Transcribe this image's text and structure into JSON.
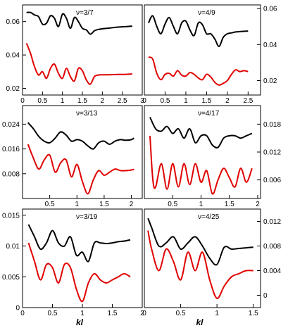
{
  "chart_data": [
    {
      "type": "line",
      "label": "ν=3/7",
      "xlim": [
        0,
        3
      ],
      "ylim": [
        0.016,
        0.07
      ],
      "xticks": [
        0,
        0.5,
        1,
        1.5,
        2,
        2.5,
        3
      ],
      "xtick_labels": [
        "0",
        "0.5",
        "1",
        "1.5",
        "2",
        "2.5",
        "3"
      ],
      "yticks": [
        0.02,
        0.04,
        0.06
      ],
      "ytick_labels": [
        "0.02",
        "0.04",
        "0.06"
      ],
      "yaxis_side": "left",
      "xlabel": "",
      "series": [
        {
          "color": "#000000",
          "x": [
            0.1,
            0.2,
            0.3,
            0.4,
            0.5,
            0.6,
            0.7,
            0.8,
            0.9,
            1.0,
            1.1,
            1.2,
            1.3,
            1.4,
            1.5,
            1.6,
            1.7,
            1.8,
            1.9,
            2.0,
            2.2,
            2.4,
            2.6,
            2.75
          ],
          "y": [
            0.0655,
            0.0655,
            0.064,
            0.063,
            0.0585,
            0.059,
            0.0635,
            0.062,
            0.057,
            0.0645,
            0.062,
            0.056,
            0.0625,
            0.06,
            0.056,
            0.055,
            0.0525,
            0.0545,
            0.0553,
            0.0557,
            0.0562,
            0.0567,
            0.057,
            0.0573
          ]
        },
        {
          "color": "#e00000",
          "x": [
            0.1,
            0.2,
            0.3,
            0.4,
            0.5,
            0.6,
            0.7,
            0.8,
            0.9,
            1.0,
            1.1,
            1.2,
            1.3,
            1.4,
            1.5,
            1.6,
            1.7,
            1.8,
            1.9,
            2.0,
            2.2,
            2.4,
            2.6,
            2.75
          ],
          "y": [
            0.047,
            0.041,
            0.033,
            0.028,
            0.03,
            0.026,
            0.032,
            0.0345,
            0.029,
            0.026,
            0.032,
            0.027,
            0.0245,
            0.032,
            0.0305,
            0.025,
            0.0225,
            0.027,
            0.028,
            0.0281,
            0.0282,
            0.0283,
            0.0284,
            0.0286
          ]
        }
      ]
    },
    {
      "type": "line",
      "label": "ν=4/9",
      "xlim": [
        0,
        2.8
      ],
      "ylim": [
        0.012,
        0.062
      ],
      "xticks": [
        0,
        0.5,
        1,
        1.5,
        2,
        2.5
      ],
      "xtick_labels": [
        "0",
        "0.5",
        "1",
        "1.5",
        "2",
        "2.5"
      ],
      "yticks": [
        0.02,
        0.04,
        0.06
      ],
      "ytick_labels": [
        "0.02",
        "0.04",
        "0.06"
      ],
      "yaxis_side": "right",
      "xlabel": "",
      "series": [
        {
          "color": "#000000",
          "x": [
            0.1,
            0.2,
            0.3,
            0.4,
            0.5,
            0.6,
            0.7,
            0.8,
            0.9,
            1.0,
            1.1,
            1.2,
            1.3,
            1.4,
            1.5,
            1.6,
            1.7,
            1.8,
            1.9,
            2.0,
            2.1,
            2.2,
            2.3,
            2.4,
            2.5
          ],
          "y": [
            0.052,
            0.056,
            0.05,
            0.046,
            0.0515,
            0.055,
            0.05,
            0.046,
            0.052,
            0.053,
            0.048,
            0.045,
            0.052,
            0.051,
            0.046,
            0.046,
            0.043,
            0.039,
            0.044,
            0.046,
            0.0465,
            0.047,
            0.0472,
            0.0474,
            0.0475
          ]
        },
        {
          "color": "#e00000",
          "x": [
            0.1,
            0.2,
            0.3,
            0.4,
            0.5,
            0.6,
            0.7,
            0.8,
            0.9,
            1.0,
            1.1,
            1.2,
            1.3,
            1.4,
            1.5,
            1.6,
            1.7,
            1.8,
            1.9,
            2.0,
            2.1,
            2.2,
            2.3,
            2.4,
            2.5
          ],
          "y": [
            0.033,
            0.032,
            0.024,
            0.0205,
            0.0235,
            0.024,
            0.0225,
            0.0255,
            0.023,
            0.0225,
            0.0245,
            0.0235,
            0.0215,
            0.0205,
            0.0235,
            0.022,
            0.019,
            0.0175,
            0.0185,
            0.02,
            0.0235,
            0.026,
            0.025,
            0.0255,
            0.025
          ]
        }
      ]
    },
    {
      "type": "line",
      "label": "ν=3/13",
      "xlim": [
        0,
        2.2
      ],
      "ylim": [
        0.0,
        0.03
      ],
      "xticks": [
        0.5,
        1,
        1.5,
        2
      ],
      "xtick_labels": [
        "0.5",
        "1",
        "1.5",
        "2"
      ],
      "yticks": [
        0.008,
        0.016,
        0.024
      ],
      "ytick_labels": [
        "0.008",
        "0.016",
        "0.024"
      ],
      "yaxis_side": "left",
      "xlabel": "",
      "series": [
        {
          "color": "#000000",
          "x": [
            0.1,
            0.2,
            0.3,
            0.4,
            0.5,
            0.6,
            0.7,
            0.8,
            0.9,
            1.0,
            1.1,
            1.2,
            1.3,
            1.4,
            1.5,
            1.6,
            1.7,
            1.8,
            1.9,
            2.0,
            2.05
          ],
          "y": [
            0.0245,
            0.0225,
            0.02,
            0.0185,
            0.018,
            0.0195,
            0.0215,
            0.0205,
            0.0185,
            0.019,
            0.0185,
            0.017,
            0.016,
            0.018,
            0.0185,
            0.0175,
            0.0185,
            0.019,
            0.0188,
            0.019,
            0.0195
          ]
        },
        {
          "color": "#e00000",
          "x": [
            0.1,
            0.2,
            0.3,
            0.4,
            0.5,
            0.6,
            0.7,
            0.8,
            0.9,
            1.0,
            1.1,
            1.2,
            1.3,
            1.4,
            1.5,
            1.6,
            1.7,
            1.8,
            1.9,
            2.0,
            2.05
          ],
          "y": [
            0.0175,
            0.013,
            0.0095,
            0.0125,
            0.014,
            0.0085,
            0.0115,
            0.0125,
            0.007,
            0.011,
            0.0055,
            0.0015,
            0.006,
            0.009,
            0.0075,
            0.0085,
            0.0095,
            0.009,
            0.009,
            0.0092,
            0.0094
          ]
        }
      ]
    },
    {
      "type": "line",
      "label": "ν=4/17",
      "xlim": [
        0,
        2.05
      ],
      "ylim": [
        0.002,
        0.022
      ],
      "xticks": [
        0.5,
        1,
        1.5,
        2
      ],
      "xtick_labels": [
        "0.5",
        "1",
        "1.5",
        "2"
      ],
      "yticks": [
        0.006,
        0.012,
        0.018
      ],
      "ytick_labels": [
        "0.006",
        "0.012",
        "0.018"
      ],
      "yaxis_side": "right",
      "xlabel": "",
      "series": [
        {
          "color": "#000000",
          "x": [
            0.1,
            0.2,
            0.3,
            0.4,
            0.5,
            0.6,
            0.7,
            0.8,
            0.9,
            1.0,
            1.1,
            1.2,
            1.3,
            1.4,
            1.5,
            1.6,
            1.7,
            1.8,
            1.9
          ],
          "y": [
            0.0195,
            0.017,
            0.0165,
            0.0175,
            0.016,
            0.017,
            0.015,
            0.017,
            0.014,
            0.0155,
            0.0155,
            0.0135,
            0.013,
            0.015,
            0.0155,
            0.0155,
            0.015,
            0.0155,
            0.016
          ]
        },
        {
          "color": "#e00000",
          "x": [
            0.1,
            0.15,
            0.2,
            0.3,
            0.4,
            0.5,
            0.6,
            0.7,
            0.8,
            0.9,
            1.0,
            1.1,
            1.2,
            1.3,
            1.4,
            1.5,
            1.6,
            1.7,
            1.8,
            1.9
          ],
          "y": [
            0.0155,
            0.006,
            0.0045,
            0.0095,
            0.004,
            0.0095,
            0.0045,
            0.0095,
            0.005,
            0.0095,
            0.0055,
            0.008,
            0.003,
            0.006,
            0.0085,
            0.0065,
            0.0045,
            0.0085,
            0.0055,
            0.0085
          ]
        }
      ]
    },
    {
      "type": "line",
      "label": "ν=3/19",
      "xlim": [
        0,
        2
      ],
      "ylim": [
        0,
        0.016
      ],
      "xticks": [
        0,
        0.5,
        1,
        1.5,
        2
      ],
      "xtick_labels": [
        "0",
        "0.5",
        "1",
        "1.5",
        "2"
      ],
      "yticks": [
        0,
        0.005,
        0.01,
        0.015
      ],
      "ytick_labels": [
        "0",
        "0.005",
        "0.01",
        "0.015"
      ],
      "yaxis_side": "left",
      "xlabel": "kl",
      "series": [
        {
          "color": "#000000",
          "x": [
            0.1,
            0.2,
            0.3,
            0.4,
            0.5,
            0.6,
            0.7,
            0.8,
            0.9,
            1.0,
            1.1,
            1.2,
            1.3,
            1.4,
            1.5,
            1.6,
            1.7,
            1.8
          ],
          "y": [
            0.0135,
            0.0115,
            0.0095,
            0.0105,
            0.0125,
            0.0105,
            0.01,
            0.0115,
            0.0085,
            0.009,
            0.0075,
            0.0105,
            0.0105,
            0.0104,
            0.0105,
            0.0107,
            0.0108,
            0.011
          ]
        },
        {
          "color": "#e00000",
          "x": [
            0.1,
            0.2,
            0.3,
            0.4,
            0.5,
            0.6,
            0.7,
            0.8,
            0.9,
            1.0,
            1.1,
            1.2,
            1.3,
            1.4,
            1.5,
            1.6,
            1.7,
            1.8
          ],
          "y": [
            0.0105,
            0.0075,
            0.0045,
            0.007,
            0.0065,
            0.004,
            0.007,
            0.0065,
            0.003,
            0.001,
            0.004,
            0.0055,
            0.0045,
            0.004,
            0.0045,
            0.005,
            0.0055,
            0.005
          ]
        }
      ]
    },
    {
      "type": "line",
      "label": "ν=4/25",
      "xlim": [
        0,
        1.6
      ],
      "ylim": [
        -0.002,
        0.014
      ],
      "xticks": [
        0,
        0.5,
        1,
        1.5
      ],
      "xtick_labels": [
        "0",
        "0.5",
        "1",
        "1.5"
      ],
      "yticks": [
        0,
        0.004,
        0.008,
        0.012
      ],
      "ytick_labels": [
        "0",
        "0.004",
        "0.008",
        "0.012"
      ],
      "yaxis_side": "right",
      "xlabel": "kl",
      "series": [
        {
          "color": "#000000",
          "x": [
            0.05,
            0.1,
            0.2,
            0.3,
            0.4,
            0.5,
            0.6,
            0.7,
            0.8,
            0.9,
            1.0,
            1.1,
            1.2,
            1.3,
            1.4,
            1.5
          ],
          "y": [
            0.0125,
            0.011,
            0.008,
            0.0085,
            0.0095,
            0.0075,
            0.0085,
            0.0095,
            0.008,
            0.006,
            0.005,
            0.0078,
            0.0075,
            0.0076,
            0.0077,
            0.0078
          ]
        },
        {
          "color": "#e00000",
          "x": [
            0.05,
            0.1,
            0.2,
            0.3,
            0.4,
            0.5,
            0.6,
            0.7,
            0.8,
            0.9,
            1.0,
            1.1,
            1.2,
            1.3,
            1.4,
            1.5
          ],
          "y": [
            0.0105,
            0.0075,
            0.004,
            0.0075,
            0.0055,
            0.0025,
            0.007,
            0.004,
            0.007,
            0.0025,
            -0.0005,
            0.0015,
            0.003,
            0.0035,
            0.004,
            0.004
          ]
        }
      ]
    }
  ]
}
